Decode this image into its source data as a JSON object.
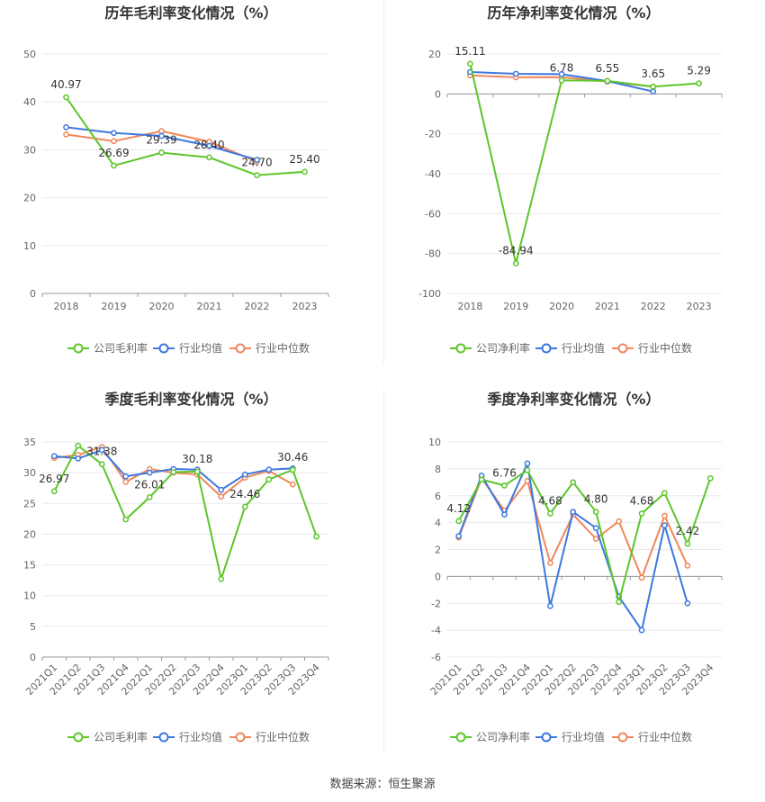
{
  "source": "数据来源：恒生聚源",
  "colors": {
    "company": "#5cc62a",
    "avg": "#3d78e0",
    "median": "#f0875a",
    "grid": "#e8e8ef",
    "axis": "#999999",
    "text": "#666666"
  },
  "chart_data": [
    {
      "type": "line",
      "title": "历年毛利率变化情况（%）",
      "categories": [
        "2018",
        "2019",
        "2020",
        "2021",
        "2022",
        "2023"
      ],
      "ylim": [
        0,
        50
      ],
      "yticks": [
        0,
        10,
        20,
        30,
        40,
        50
      ],
      "series": [
        {
          "name": "公司毛利率",
          "key": "company",
          "values": [
            40.97,
            26.69,
            29.39,
            28.4,
            24.7,
            25.4
          ]
        },
        {
          "name": "行业均值",
          "key": "avg",
          "values": [
            34.7,
            33.5,
            32.9,
            30.8,
            27.9,
            null
          ]
        },
        {
          "name": "行业中位数",
          "key": "median",
          "values": [
            33.2,
            31.8,
            33.9,
            31.7,
            27.5,
            null
          ]
        }
      ],
      "data_labels": [
        "40.97",
        "26.69",
        "29.39",
        "28.40",
        "24.70",
        "25.40"
      ],
      "legend": "bottom",
      "grid": true
    },
    {
      "type": "line",
      "title": "历年净利率变化情况（%）",
      "categories": [
        "2018",
        "2019",
        "2020",
        "2021",
        "2022",
        "2023"
      ],
      "ylim": [
        -100,
        20
      ],
      "yticks": [
        -100,
        -80,
        -60,
        -40,
        -20,
        0,
        20
      ],
      "series": [
        {
          "name": "公司净利率",
          "key": "company",
          "values": [
            15.11,
            -84.94,
            6.78,
            6.55,
            3.65,
            5.29
          ]
        },
        {
          "name": "行业均值",
          "key": "avg",
          "values": [
            11.0,
            10.1,
            9.9,
            6.4,
            1.2,
            null
          ]
        },
        {
          "name": "行业中位数",
          "key": "median",
          "values": [
            9.3,
            8.3,
            8.4,
            6.2,
            3.6,
            null
          ]
        }
      ],
      "data_labels": [
        "15.11",
        "-84.94",
        "6.78",
        "6.55",
        "3.65",
        "5.29"
      ],
      "legend": "bottom",
      "grid": true
    },
    {
      "type": "line",
      "title": "季度毛利率变化情况（%）",
      "categories": [
        "2021Q1",
        "2021Q2",
        "2021Q3",
        "2021Q4",
        "2022Q1",
        "2022Q2",
        "2022Q3",
        "2022Q4",
        "2023Q1",
        "2023Q2",
        "2023Q3",
        "2023Q4"
      ],
      "ylim": [
        0,
        35
      ],
      "yticks": [
        0,
        5,
        10,
        15,
        20,
        25,
        30,
        35
      ],
      "series": [
        {
          "name": "公司毛利率",
          "key": "company",
          "values": [
            26.97,
            34.4,
            31.38,
            22.4,
            26.01,
            30.1,
            30.18,
            12.7,
            24.46,
            28.9,
            30.46,
            19.6
          ]
        },
        {
          "name": "行业均值",
          "key": "avg",
          "values": [
            32.7,
            32.3,
            33.7,
            29.4,
            30.0,
            30.6,
            30.5,
            27.2,
            29.7,
            30.5,
            30.7,
            null
          ]
        },
        {
          "name": "行业中位数",
          "key": "median",
          "values": [
            32.4,
            32.9,
            34.2,
            28.5,
            30.6,
            30.0,
            29.7,
            26.1,
            29.2,
            30.3,
            28.1,
            null
          ]
        }
      ],
      "data_labels": [
        "26.97",
        "",
        "31.38",
        "",
        "26.01",
        "",
        "30.18",
        "",
        "24.46",
        "",
        "30.46",
        ""
      ],
      "legend": "bottom",
      "grid": true
    },
    {
      "type": "line",
      "title": "季度净利率变化情况（%）",
      "categories": [
        "2021Q1",
        "2021Q2",
        "2021Q3",
        "2021Q4",
        "2022Q1",
        "2022Q2",
        "2022Q3",
        "2022Q4",
        "2023Q1",
        "2023Q2",
        "2023Q3",
        "2023Q4"
      ],
      "ylim": [
        -6,
        10
      ],
      "yticks": [
        -6,
        -4,
        -2,
        0,
        2,
        4,
        6,
        8,
        10
      ],
      "series": [
        {
          "name": "公司净利率",
          "key": "company",
          "values": [
            4.12,
            7.2,
            6.76,
            7.9,
            4.68,
            7.0,
            4.8,
            -1.9,
            4.68,
            6.2,
            2.42,
            7.3
          ]
        },
        {
          "name": "行业均值",
          "key": "avg",
          "values": [
            3.0,
            7.5,
            4.6,
            8.4,
            -2.2,
            4.8,
            3.6,
            -1.5,
            -4.0,
            3.8,
            -2.0,
            null
          ]
        },
        {
          "name": "行业中位数",
          "key": "median",
          "values": [
            2.9,
            7.3,
            4.9,
            7.1,
            1.0,
            4.6,
            2.8,
            4.1,
            -0.1,
            4.5,
            0.8,
            null
          ]
        }
      ],
      "data_labels": [
        "4.12",
        "",
        "6.76",
        "",
        "4.68",
        "",
        "4.80",
        "",
        "4.68",
        "",
        "2.42",
        ""
      ],
      "legend": "bottom",
      "grid": true
    }
  ]
}
